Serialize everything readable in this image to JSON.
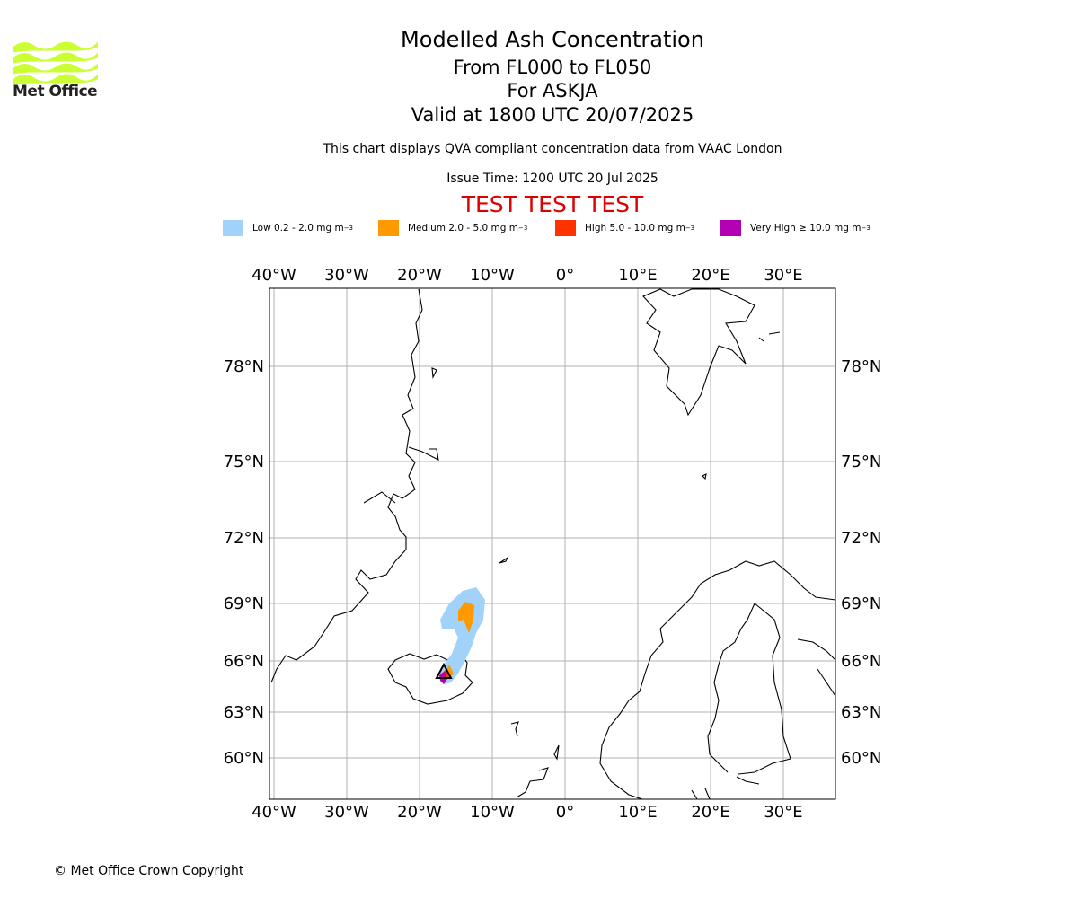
{
  "header": {
    "title": "Modelled Ash Concentration",
    "subtitle_1": "From FL000 to FL050",
    "subtitle_2": "For ASKJA",
    "subtitle_3": "Valid at 1800 UTC 20/07/2025",
    "note": "This chart displays QVA compliant concentration data from VAAC London",
    "issue_time": "Issue Time: 1200 UTC 20 Jul 2025",
    "test_banner": "TEST TEST TEST",
    "test_color": "#dd0000"
  },
  "logo": {
    "text": "Met Office",
    "color": "#ccff33"
  },
  "legend": [
    {
      "label": "Low 0.2 - 2.0 mg m",
      "unit_exp": "−3",
      "color": "#a0d2fa"
    },
    {
      "label": "Medium 2.0 - 5.0 mg m",
      "unit_exp": "−3",
      "color": "#ff9900"
    },
    {
      "label": "High 5.0 - 10.0 mg m",
      "unit_exp": "−3",
      "color": "#ff3300"
    },
    {
      "label": "Very High  ≥  10.0 mg m",
      "unit_exp": "−3",
      "color": "#b300b3"
    }
  ],
  "map": {
    "lon_ticks": [
      "40°W",
      "30°W",
      "20°W",
      "10°W",
      "0°",
      "10°E",
      "20°E",
      "30°E"
    ],
    "lat_ticks": [
      "78°N",
      "75°N",
      "72°N",
      "69°N",
      "66°N",
      "63°N",
      "60°N"
    ],
    "volcano": "ASKJA"
  },
  "footer": {
    "copyright": "© Met Office Crown Copyright"
  }
}
